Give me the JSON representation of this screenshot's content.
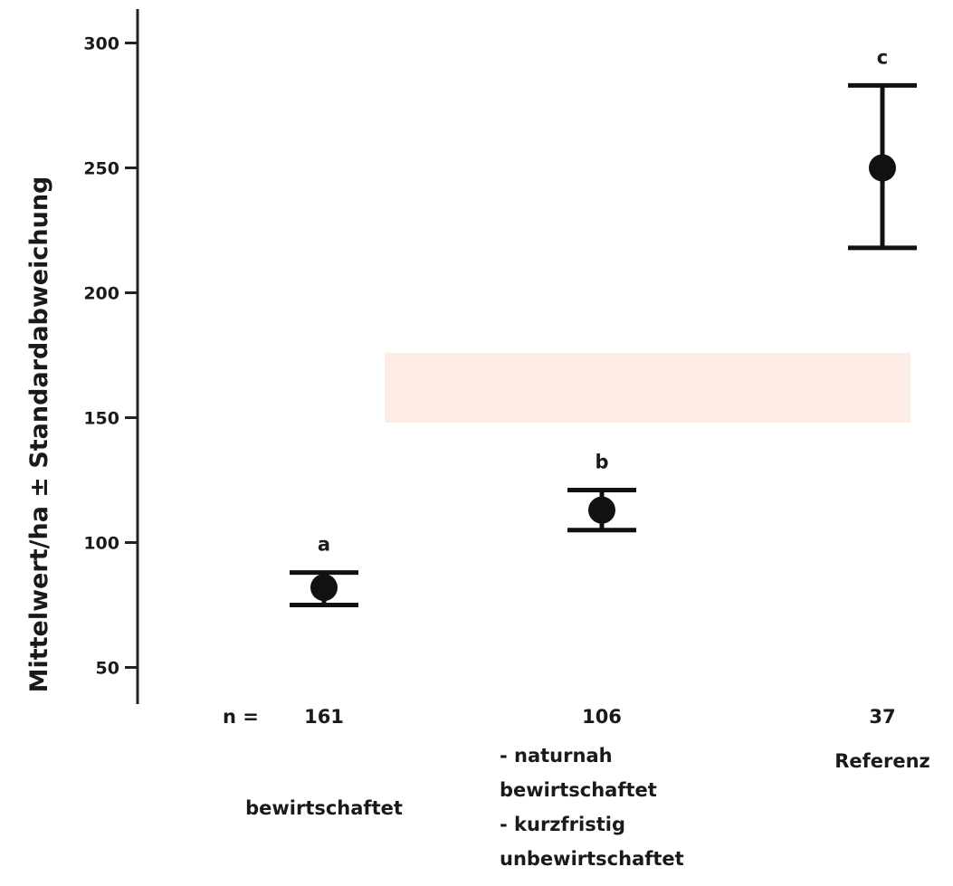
{
  "chart_data": {
    "type": "scatter",
    "ylabel": "Mittelwert/ha ± Standardabweichung",
    "xlabel": "",
    "ylim": [
      45,
      310
    ],
    "yticks": [
      50,
      100,
      150,
      200,
      250,
      300
    ],
    "grid": false,
    "n_prefix": "n =",
    "groups": [
      {
        "n": "161",
        "mean": 82,
        "lower": 75,
        "upper": 88,
        "letter": "a",
        "label_lines": [
          "bewirtschaftet"
        ]
      },
      {
        "n": "106",
        "mean": 113,
        "lower": 105,
        "upper": 121,
        "letter": "b",
        "label_lines": [
          "- naturnah",
          "bewirtschaftet",
          "- kurzfristig",
          "unbewirtschaftet"
        ]
      },
      {
        "n": "37",
        "mean": 250,
        "lower": 218,
        "upper": 283,
        "letter": "c",
        "label_lines": [
          "Referenz"
        ]
      }
    ],
    "shaded_band": {
      "y_from": 148,
      "y_to": 176,
      "from_group": 1,
      "to_group": 2,
      "color": "#fdebe5"
    },
    "colors": {
      "marker": "#111111",
      "axis": "#222222"
    }
  }
}
